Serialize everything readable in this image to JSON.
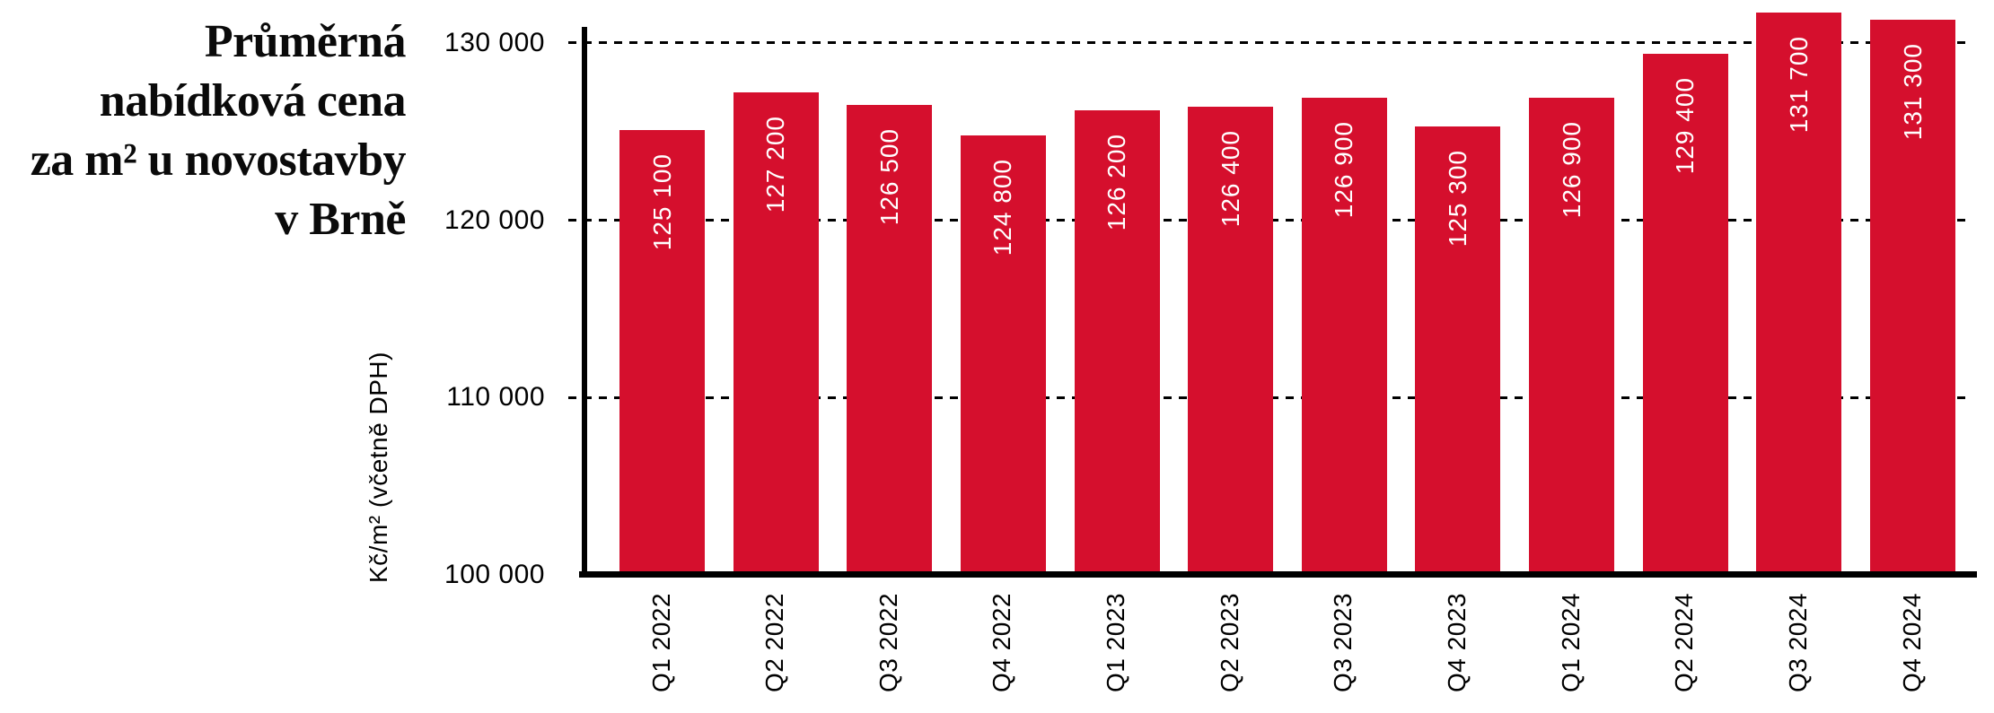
{
  "title": {
    "lines": [
      "Průměrná",
      "nabídková cena",
      "za m² u novostavby",
      "v Brně"
    ]
  },
  "chart_data": {
    "type": "bar",
    "title": "Průměrná nabídková cena za m² u novostavby v Brně",
    "xlabel": "",
    "ylabel": "Kč/m² (včetně DPH)",
    "categories": [
      "Q1 2022",
      "Q2 2022",
      "Q3 2022",
      "Q4 2022",
      "Q1 2023",
      "Q2 2023",
      "Q3 2023",
      "Q4 2023",
      "Q1 2024",
      "Q2 2024",
      "Q3 2024",
      "Q4 2024"
    ],
    "values": [
      125100,
      127200,
      126500,
      124800,
      126200,
      126400,
      126900,
      125300,
      126900,
      129400,
      131700,
      131300
    ],
    "value_labels": [
      "125 100",
      "127 200",
      "126 500",
      "124 800",
      "126 200",
      "126 400",
      "126 900",
      "125 300",
      "126 900",
      "129 400",
      "131 700",
      "131 300"
    ],
    "ylim": [
      100000,
      132400
    ],
    "yticks": [
      100000,
      110000,
      120000,
      130000
    ],
    "ytick_labels": [
      "100 000",
      "110 000",
      "120 000",
      "130 000"
    ],
    "grid": "horizontal-dashed",
    "legend": "none",
    "bar_color": "#d50f2d",
    "bar_label_color": "#ffffff",
    "axis_color": "#000000"
  }
}
